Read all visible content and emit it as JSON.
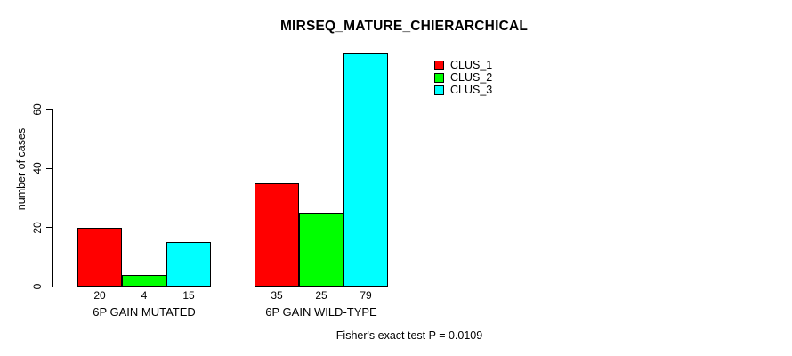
{
  "title": "MIRSEQ_MATURE_CHIERARCHICAL",
  "footer": "Fisher's exact test P = 0.0109",
  "chart_data": {
    "type": "bar",
    "title": "MIRSEQ_MATURE_CHIERARCHICAL",
    "ylabel": "number of cases",
    "xlabel": "",
    "categories": [
      "6P GAIN MUTATED",
      "6P GAIN WILD-TYPE"
    ],
    "series": [
      {
        "name": "CLUS_1",
        "color": "#ff0000",
        "values": [
          20,
          35
        ]
      },
      {
        "name": "CLUS_2",
        "color": "#00ff00",
        "values": [
          4,
          25
        ]
      },
      {
        "name": "CLUS_3",
        "color": "#00ffff",
        "values": [
          15,
          79
        ]
      }
    ],
    "yticks": [
      0,
      20,
      40,
      60
    ],
    "ylim": [
      0,
      79
    ],
    "grid": false,
    "legend_position": "top-right",
    "bar_value_labels_shown": true,
    "bar_border_color": "#000000",
    "annotation": "Fisher's exact test P = 0.0109"
  }
}
